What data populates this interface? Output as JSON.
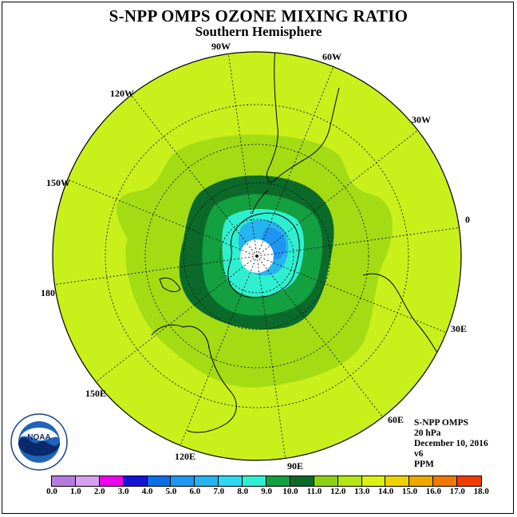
{
  "map": {
    "title": "S-NPP OMPS OZONE MIXING RATIO",
    "subtitle": "Southern Hemisphere",
    "longitude_labels": [
      "90W",
      "60W",
      "30W",
      "0",
      "30E",
      "60E",
      "90E",
      "120E",
      "150E",
      "180",
      "150W",
      "120W"
    ],
    "info": {
      "instrument": "S-NPP OMPS",
      "level": "20 hPa",
      "date": "December 10, 2016",
      "version": "v6",
      "unit": "PPM"
    },
    "logo_text": "NOAA",
    "colorbar": {
      "ticks": [
        "0.0",
        "1.0",
        "2.0",
        "3.0",
        "4.0",
        "5.0",
        "6.0",
        "7.0",
        "8.0",
        "9.0",
        "10.0",
        "11.0",
        "12.0",
        "13.0",
        "14.0",
        "15.0",
        "16.0",
        "17.0",
        "18.0"
      ],
      "colors": [
        "#b77be0",
        "#d8a0f0",
        "#ee00ee",
        "#1414d8",
        "#0b6fe8",
        "#1e96f0",
        "#25b4f0",
        "#2ed8f0",
        "#2ef0d0",
        "#12a040",
        "#0a6a2a",
        "#8cd214",
        "#b4e614",
        "#dcf014",
        "#f0d200",
        "#f0a800",
        "#f07800",
        "#f03c00",
        "#e60000",
        "#8c5a3c"
      ]
    }
  }
}
